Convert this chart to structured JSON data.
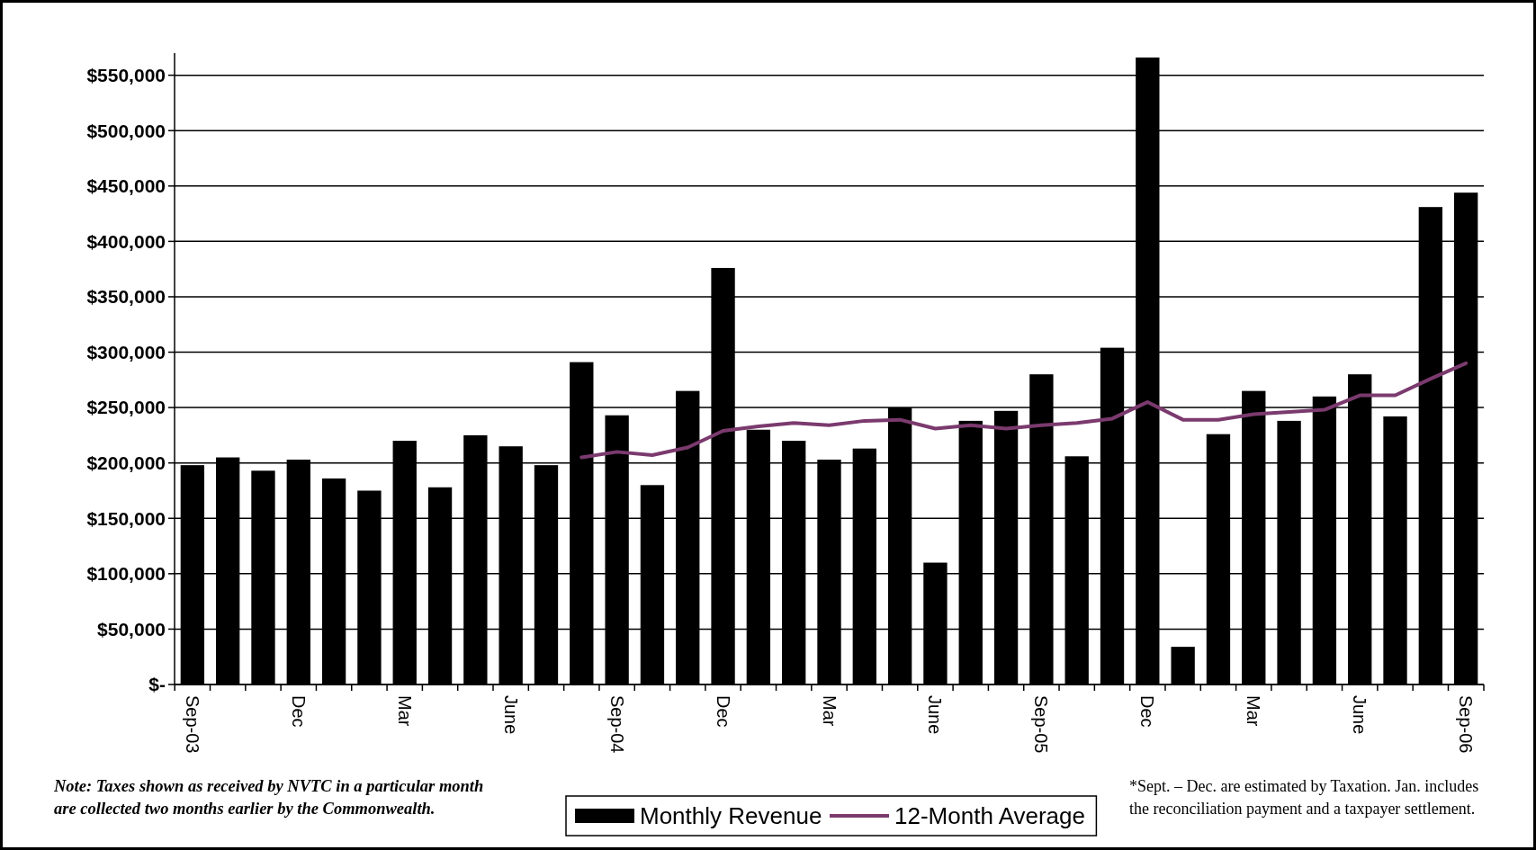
{
  "chart_data": {
    "type": "bar",
    "categories": [
      "Sep-03",
      null,
      null,
      "Dec",
      null,
      null,
      "Mar",
      null,
      null,
      "June",
      null,
      null,
      "Sep-04",
      null,
      null,
      "Dec",
      null,
      null,
      "Mar",
      null,
      null,
      "June",
      null,
      null,
      "Sep-05",
      null,
      null,
      "Dec",
      null,
      null,
      "Mar",
      null,
      null,
      "June",
      null,
      null,
      "Sep-06"
    ],
    "series": [
      {
        "name": "Monthly Revenue",
        "color": "#000000",
        "values": [
          198000,
          205000,
          193000,
          203000,
          186000,
          175000,
          220000,
          178000,
          225000,
          215000,
          198000,
          291000,
          243000,
          180000,
          265000,
          376000,
          230000,
          220000,
          203000,
          213000,
          250000,
          110000,
          238000,
          247000,
          280000,
          206000,
          304000,
          566000,
          34000,
          226000,
          265000,
          238000,
          260000,
          280000,
          242000,
          431000,
          444000
        ]
      },
      {
        "name": "12-Month Average",
        "type": "line",
        "color": "#7b3a6e",
        "values": [
          null,
          null,
          null,
          null,
          null,
          null,
          null,
          null,
          null,
          null,
          null,
          205000,
          210000,
          207000,
          214000,
          229000,
          233000,
          236000,
          234000,
          238000,
          239000,
          231000,
          234000,
          231000,
          234000,
          236000,
          240000,
          255000,
          239000,
          239000,
          244000,
          246000,
          248000,
          261000,
          261000,
          276000,
          290000
        ]
      }
    ],
    "ylim": [
      0,
      570000
    ],
    "yticks": [
      {
        "value": 0,
        "label": "$-"
      },
      {
        "value": 50000,
        "label": "$50,000"
      },
      {
        "value": 100000,
        "label": "$100,000"
      },
      {
        "value": 150000,
        "label": "$150,000"
      },
      {
        "value": 200000,
        "label": "$200,000"
      },
      {
        "value": 250000,
        "label": "$250,000"
      },
      {
        "value": 300000,
        "label": "$300,000"
      },
      {
        "value": 350000,
        "label": "$350,000"
      },
      {
        "value": 400000,
        "label": "$400,000"
      },
      {
        "value": 450000,
        "label": "$450,000"
      },
      {
        "value": 500000,
        "label": "$500,000"
      },
      {
        "value": 550000,
        "label": "$550,000"
      }
    ],
    "grid": "y",
    "legend": "bottom",
    "marker": "none",
    "line_style": "solid",
    "annotations": [
      "Note: Taxes shown as received by NVTC in a particular month are collected two months earlier by the Commonwealth.",
      "*Sept. – Dec. are estimated by Taxation.  Jan. includes the reconciliation payment and a taxpayer settlement."
    ]
  }
}
